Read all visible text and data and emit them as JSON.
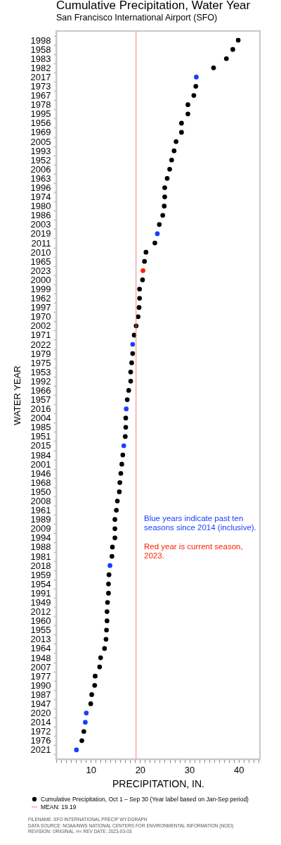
{
  "chart_data": {
    "type": "scatter",
    "orientation": "horizontal",
    "title": "Cumulative Precipitation, Water Year",
    "subtitle": "San Francisco International Airport (SFO)",
    "xlabel": "PRECIPITATION, IN.",
    "ylabel": "WATER YEAR",
    "categories": [
      "1998",
      "1958",
      "1983",
      "1982",
      "2017",
      "1973",
      "1967",
      "1978",
      "1995",
      "1956",
      "1969",
      "2005",
      "1993",
      "1952",
      "2006",
      "1963",
      "1996",
      "1974",
      "1980",
      "1986",
      "2003",
      "2019",
      "2011",
      "2010",
      "1965",
      "2023",
      "2000",
      "1999",
      "1962",
      "1997",
      "1970",
      "2002",
      "1971",
      "2022",
      "1979",
      "1975",
      "1953",
      "1992",
      "1966",
      "1957",
      "2016",
      "2004",
      "1985",
      "1951",
      "2015",
      "1984",
      "2001",
      "1946",
      "1968",
      "1950",
      "2008",
      "1961",
      "1989",
      "2009",
      "1994",
      "1988",
      "1981",
      "2018",
      "1959",
      "1954",
      "1991",
      "1949",
      "2012",
      "1960",
      "1955",
      "2013",
      "1964",
      "1948",
      "2007",
      "1977",
      "1990",
      "1987",
      "1947",
      "2020",
      "2014",
      "1972",
      "1976",
      "2021"
    ],
    "series": [
      {
        "name": "Cumulative Precipitation, Oct 1 – Sep 30 (Year label based on Jan-Sep period)",
        "color": "#000000",
        "values": [
          39.9,
          38.8,
          37.5,
          34.9,
          31.4,
          31.3,
          30.9,
          29.7,
          29.7,
          28.4,
          28.4,
          27.3,
          26.9,
          26.4,
          26.0,
          25.5,
          25.0,
          25.0,
          24.9,
          24.6,
          23.9,
          23.5,
          23.0,
          21.2,
          20.9,
          20.6,
          20.5,
          19.9,
          19.9,
          19.8,
          19.6,
          19.2,
          18.8,
          18.5,
          18.5,
          18.3,
          18.1,
          18.1,
          17.7,
          17.4,
          17.2,
          17.1,
          17.1,
          17.0,
          16.7,
          16.5,
          16.3,
          16.1,
          15.9,
          15.8,
          15.4,
          15.2,
          14.9,
          14.9,
          14.9,
          14.4,
          14.3,
          13.9,
          13.7,
          13.6,
          13.6,
          13.4,
          13.3,
          13.3,
          13.2,
          13.1,
          12.8,
          12.0,
          11.8,
          10.9,
          10.8,
          10.2,
          10.0,
          9.1,
          8.9,
          8.6,
          8.2,
          7.1
        ],
        "colors": [
          "#000000",
          "#000000",
          "#000000",
          "#000000",
          "#1a3cff",
          "#000000",
          "#000000",
          "#000000",
          "#000000",
          "#000000",
          "#000000",
          "#000000",
          "#000000",
          "#000000",
          "#000000",
          "#000000",
          "#000000",
          "#000000",
          "#000000",
          "#000000",
          "#000000",
          "#1a3cff",
          "#000000",
          "#000000",
          "#000000",
          "#ff2000",
          "#000000",
          "#000000",
          "#000000",
          "#000000",
          "#000000",
          "#000000",
          "#000000",
          "#1a3cff",
          "#000000",
          "#000000",
          "#000000",
          "#000000",
          "#000000",
          "#000000",
          "#1a3cff",
          "#000000",
          "#000000",
          "#000000",
          "#1a3cff",
          "#000000",
          "#000000",
          "#000000",
          "#000000",
          "#000000",
          "#000000",
          "#000000",
          "#000000",
          "#000000",
          "#000000",
          "#000000",
          "#000000",
          "#1a3cff",
          "#000000",
          "#000000",
          "#000000",
          "#000000",
          "#000000",
          "#000000",
          "#000000",
          "#000000",
          "#000000",
          "#000000",
          "#000000",
          "#000000",
          "#000000",
          "#000000",
          "#000000",
          "#1a3cff",
          "#1a3cff",
          "#000000",
          "#000000",
          "#1a3cff"
        ]
      }
    ],
    "xlim": [
      3,
      44.3
    ],
    "xticks": [
      {
        "value": 3,
        "label": null
      },
      {
        "value": 4,
        "label": null
      },
      {
        "value": 5,
        "label": null
      },
      {
        "value": 6,
        "label": null
      },
      {
        "value": 7,
        "label": null
      },
      {
        "value": 8,
        "label": null
      },
      {
        "value": 9,
        "label": null
      },
      10,
      {
        "value": 11,
        "label": null
      },
      {
        "value": 12,
        "label": null
      },
      {
        "value": 13,
        "label": null
      },
      {
        "value": 14,
        "label": null
      },
      {
        "value": 15,
        "label": null
      },
      {
        "value": 16,
        "label": null
      },
      {
        "value": 17,
        "label": null
      },
      {
        "value": 18,
        "label": null
      },
      {
        "value": 19,
        "label": null
      },
      20,
      {
        "value": 21,
        "label": null
      },
      {
        "value": 22,
        "label": null
      },
      {
        "value": 23,
        "label": null
      },
      {
        "value": 24,
        "label": null
      },
      {
        "value": 25,
        "label": null
      },
      {
        "value": 26,
        "label": null
      },
      {
        "value": 27,
        "label": null
      },
      {
        "value": 28,
        "label": null
      },
      {
        "value": 29,
        "label": null
      },
      30,
      {
        "value": 31,
        "label": null
      },
      {
        "value": 32,
        "label": null
      },
      {
        "value": 33,
        "label": null
      },
      {
        "value": 34,
        "label": null
      },
      {
        "value": 35,
        "label": null
      },
      {
        "value": 36,
        "label": null
      },
      {
        "value": 37,
        "label": null
      },
      {
        "value": 38,
        "label": null
      },
      {
        "value": 39,
        "label": null
      },
      40,
      {
        "value": 41,
        "label": null
      },
      {
        "value": 42,
        "label": null
      },
      {
        "value": 43,
        "label": null
      },
      {
        "value": 44,
        "label": null
      }
    ],
    "ref_lines": [
      {
        "axis": "x",
        "value": 19.19,
        "label": "MEAN: 19.19",
        "color": "#f08080"
      }
    ],
    "annotations": [
      "Blue years indicate past ten seasons since 2014 (inclusive).",
      "Red year is current season, 2023.",
      "FILENAME: SFO INTERNATIONAL PRECIP WY.DGRAPH",
      "DATA SOURCE: NOAA/NWS NATIONAL CENTERS FOR ENVIRONMENTAL INFORMATION (NCEI)",
      "REVISION: ORIGINAL >I< REV DATE: 2023-03-03"
    ],
    "legend": "bottom",
    "marker": "circle"
  }
}
